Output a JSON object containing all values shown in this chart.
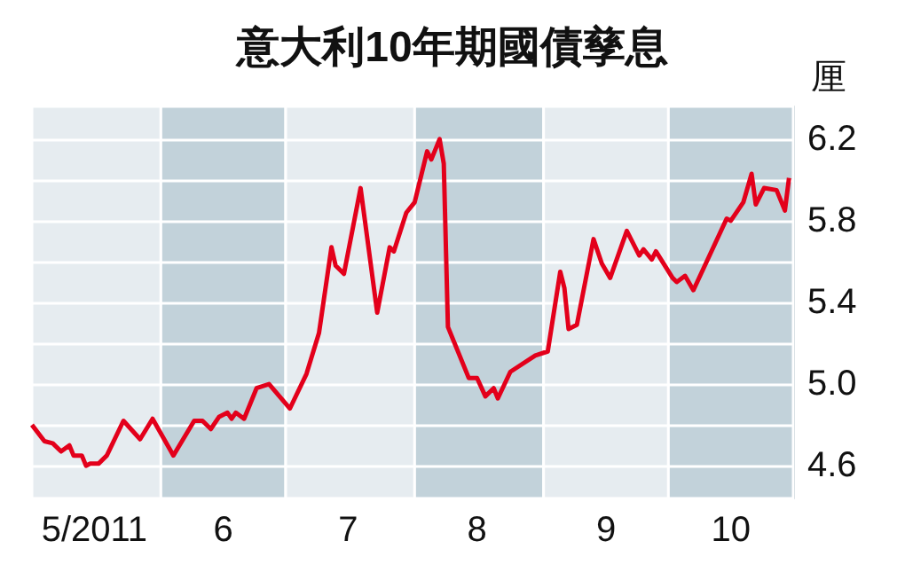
{
  "chart_data": {
    "type": "line",
    "title": "意大利10年期國債孳息",
    "ylabel": "厘",
    "series": [
      {
        "color": "#e3001b",
        "x": [
          "2011-05-01",
          "2011-05-04",
          "2011-05-06",
          "2011-05-08",
          "2011-05-10",
          "2011-05-11",
          "2011-05-13",
          "2011-05-14",
          "2011-05-15",
          "2011-05-17",
          "2011-05-19",
          "2011-05-23",
          "2011-05-27",
          "2011-05-30",
          "2011-06-04",
          "2011-06-09",
          "2011-06-11",
          "2011-06-13",
          "2011-06-15",
          "2011-06-17",
          "2011-06-18",
          "2011-06-19",
          "2011-06-21",
          "2011-06-24",
          "2011-06-27",
          "2011-07-02",
          "2011-07-06",
          "2011-07-09",
          "2011-07-12",
          "2011-07-13",
          "2011-07-15",
          "2011-07-19",
          "2011-07-23",
          "2011-07-26",
          "2011-07-27",
          "2011-07-30",
          "2011-08-01",
          "2011-08-04",
          "2011-08-05",
          "2011-08-07",
          "2011-08-08",
          "2011-08-09",
          "2011-08-14",
          "2011-08-16",
          "2011-08-18",
          "2011-08-20",
          "2011-08-21",
          "2011-08-24",
          "2011-08-30",
          "2011-09-02",
          "2011-09-05",
          "2011-09-06",
          "2011-09-07",
          "2011-09-09",
          "2011-09-13",
          "2011-09-15",
          "2011-09-17",
          "2011-09-21",
          "2011-09-24",
          "2011-09-25",
          "2011-09-27",
          "2011-09-28",
          "2011-10-02",
          "2011-10-03",
          "2011-10-05",
          "2011-10-07",
          "2011-10-15",
          "2011-10-16",
          "2011-10-19",
          "2011-10-21",
          "2011-10-22",
          "2011-10-24",
          "2011-10-27",
          "2011-10-29",
          "2011-10-30"
        ],
        "values": [
          4.8,
          4.72,
          4.71,
          4.67,
          4.7,
          4.65,
          4.65,
          4.6,
          4.61,
          4.61,
          4.65,
          4.82,
          4.73,
          4.83,
          4.65,
          4.82,
          4.82,
          4.78,
          4.84,
          4.86,
          4.83,
          4.86,
          4.83,
          4.98,
          5.0,
          4.88,
          5.05,
          5.25,
          5.67,
          5.58,
          5.54,
          5.96,
          5.35,
          5.67,
          5.65,
          5.84,
          5.89,
          6.14,
          6.1,
          6.2,
          6.08,
          5.28,
          5.03,
          5.03,
          4.94,
          4.98,
          4.93,
          5.06,
          5.14,
          5.16,
          5.55,
          5.47,
          5.27,
          5.29,
          5.71,
          5.59,
          5.52,
          5.75,
          5.63,
          5.66,
          5.61,
          5.65,
          5.52,
          5.5,
          5.53,
          5.46,
          5.81,
          5.8,
          5.89,
          6.03,
          5.88,
          5.96,
          5.95,
          5.85,
          6.01
        ]
      }
    ],
    "xlim": [
      "2011-05-01",
      "2011-10-31"
    ],
    "xticks": [
      {
        "value": "2011-05-16",
        "label": "5/2011"
      },
      {
        "value": "2011-06-16",
        "label": "6"
      },
      {
        "value": "2011-07-16",
        "label": "7"
      },
      {
        "value": "2011-08-16",
        "label": "8"
      },
      {
        "value": "2011-09-16",
        "label": "9"
      },
      {
        "value": "2011-10-16",
        "label": "10"
      }
    ],
    "ylim": [
      4.44,
      6.36
    ],
    "yticks": [
      4.6,
      {
        "value": 4.8,
        "label": null
      },
      {
        "value": 5.0,
        "label": "5.0"
      },
      {
        "value": 5.2,
        "label": null
      },
      5.4,
      {
        "value": 5.6,
        "label": null
      },
      5.8,
      {
        "value": 6.0,
        "label": null
      },
      6.2
    ],
    "bands": [
      {
        "axis": "x",
        "from": "2011-05-01",
        "to": "2011-06-01",
        "color": "#e6ecf0"
      },
      {
        "axis": "x",
        "from": "2011-06-01",
        "to": "2011-07-01",
        "color": "#c2d2da"
      },
      {
        "axis": "x",
        "from": "2011-07-01",
        "to": "2011-08-01",
        "color": "#e6ecf0"
      },
      {
        "axis": "x",
        "from": "2011-08-01",
        "to": "2011-09-01",
        "color": "#c2d2da"
      },
      {
        "axis": "x",
        "from": "2011-09-01",
        "to": "2011-10-01",
        "color": "#e6ecf0"
      },
      {
        "axis": "x",
        "from": "2011-10-01",
        "to": "2011-10-31",
        "color": "#c2d2da"
      }
    ],
    "grid": "y",
    "marker": "none",
    "line_style": "solid"
  }
}
